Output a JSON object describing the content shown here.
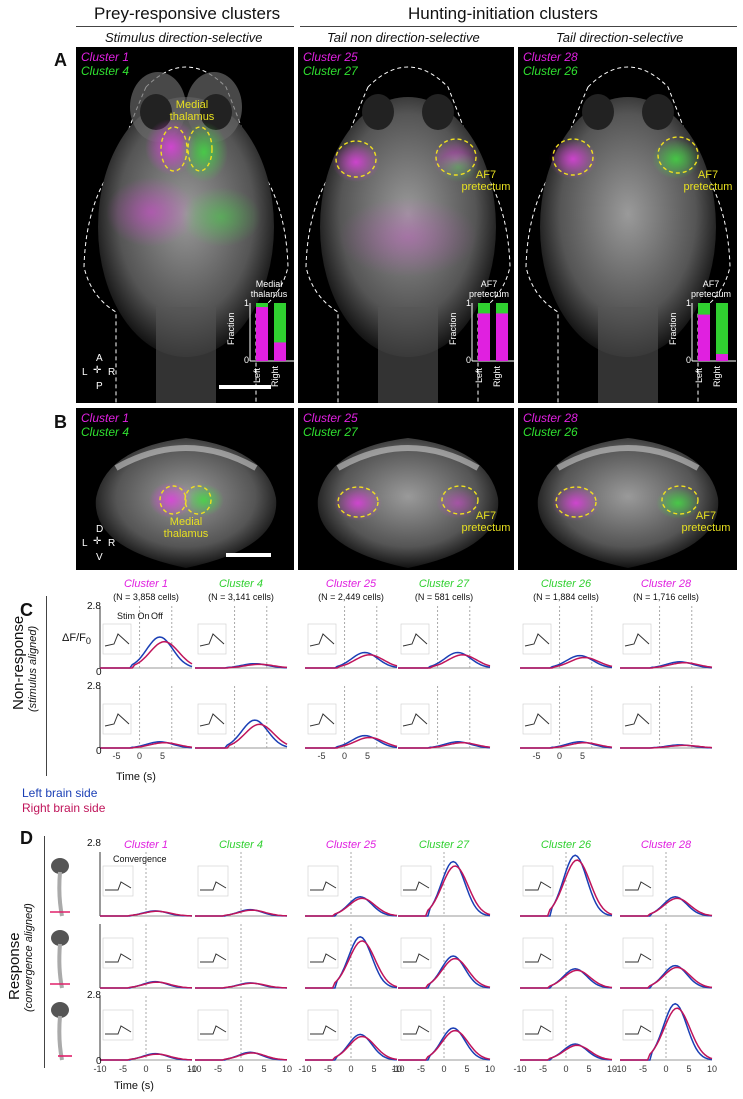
{
  "headers": {
    "prey": "Prey-responsive clusters",
    "hunting": "Hunting-initiation clusters"
  },
  "subheaders": {
    "stim_ds": "Stimulus direction-selective",
    "tail_nds": "Tail non direction-selective",
    "tail_ds": "Tail direction-selective"
  },
  "panel_letters": {
    "a": "A",
    "b": "B",
    "c": "C",
    "d": "D"
  },
  "panelA": {
    "col1": {
      "c1": "Cluster 1",
      "c2": "Cluster 4",
      "region": "Medial\nthalamus",
      "inset_title": "Medial\nthalamus"
    },
    "col2": {
      "c1": "Cluster 25",
      "c2": "Cluster 27",
      "region": "AF7\npretectum",
      "inset_title": "AF7\npretectum"
    },
    "col3": {
      "c1": "Cluster 28",
      "c2": "Cluster 26",
      "region": "AF7\npretectum",
      "inset_title": "AF7\npretectum"
    },
    "inset_ylabel": "Fraction",
    "inset_x": [
      "Left",
      "Right"
    ],
    "inset_ticks": [
      "1",
      "0"
    ],
    "orient": {
      "a": "A",
      "p": "P",
      "l": "L",
      "r": "R"
    }
  },
  "inset_fractions": {
    "col1": {
      "left_magenta": 0.93,
      "right_magenta": 0.32
    },
    "col2": {
      "left_magenta": 0.82,
      "right_magenta": 0.82
    },
    "col3": {
      "left_magenta": 0.8,
      "right_magenta": 0.12
    }
  },
  "panelB": {
    "col1": {
      "c1": "Cluster 1",
      "c2": "Cluster 4",
      "region": "Medial\nthalamus"
    },
    "col2": {
      "c1": "Cluster 25",
      "c2": "Cluster 27",
      "region": "AF7\npretectum"
    },
    "col3": {
      "c1": "Cluster 28",
      "c2": "Cluster 26",
      "region": "AF7\npretectum"
    },
    "orient": {
      "d": "D",
      "v": "V",
      "l": "L",
      "r": "R"
    }
  },
  "panelC": {
    "columns": [
      {
        "name": "Cluster 1",
        "n": "(N = 3,858 cells)",
        "color": "magenta"
      },
      {
        "name": "Cluster 4",
        "n": "(N = 3,141 cells)",
        "color": "green"
      },
      {
        "name": "Cluster 25",
        "n": "(N = 2,449 cells)",
        "color": "magenta"
      },
      {
        "name": "Cluster 27",
        "n": "(N = 581 cells)",
        "color": "green"
      },
      {
        "name": "Cluster 26",
        "n": "(N = 1,884 cells)",
        "color": "green"
      },
      {
        "name": "Cluster 28",
        "n": "(N = 1,716 cells)",
        "color": "magenta"
      }
    ],
    "ymax": "2.8",
    "y0": "0",
    "stim_on": "Stim On",
    "off": "Off",
    "dff": "ΔF/F",
    "dff_sub": "0",
    "inset_tick": "10",
    "inset_x": [
      "0",
      "10"
    ],
    "side_label": "Non-response",
    "side_sub": "(stimulus aligned)",
    "xticks": [
      "-5",
      "0",
      "5"
    ],
    "xlabel": "Time (s)"
  },
  "legend": {
    "left": "Left brain side",
    "right": "Right brain side",
    "left_color": "#1a3fb5",
    "right_color": "#c0145a"
  },
  "panelD": {
    "columns": [
      "Cluster 1",
      "Cluster 4",
      "Cluster 25",
      "Cluster 27",
      "Cluster 26",
      "Cluster 28"
    ],
    "column_colors": [
      "magenta",
      "green",
      "magenta",
      "green",
      "green",
      "magenta"
    ],
    "ymax": "2.8",
    "y0": "0",
    "convergence": "Convergence",
    "inset_tick": "10",
    "inset_x": [
      "-10",
      "0",
      "10"
    ],
    "side_label": "Response",
    "side_sub": "(convergence aligned)",
    "xticks": [
      "-10",
      "-5",
      "0",
      "5",
      "10"
    ],
    "xlabel": "Time (s)"
  },
  "colors": {
    "magenta": "#e020e0",
    "green": "#30d030",
    "yellow": "#f0e020"
  }
}
